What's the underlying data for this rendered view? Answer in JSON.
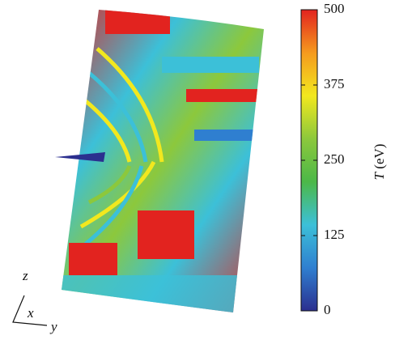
{
  "chart_data": {
    "type": "colorbar-figure",
    "colorbar_label": {
      "symbol": "T",
      "unit": "(eV)"
    },
    "zlim": [
      0,
      500
    ],
    "zticks": [
      0,
      125,
      250,
      375,
      500
    ],
    "colormap": [
      "#2b2f8f",
      "#2f7fd0",
      "#3cc0d8",
      "#4cb848",
      "#8cc83c",
      "#f2e81e",
      "#f59a1e",
      "#e2231f"
    ],
    "axes": {
      "z": "z",
      "x": "x",
      "y": "y"
    }
  }
}
